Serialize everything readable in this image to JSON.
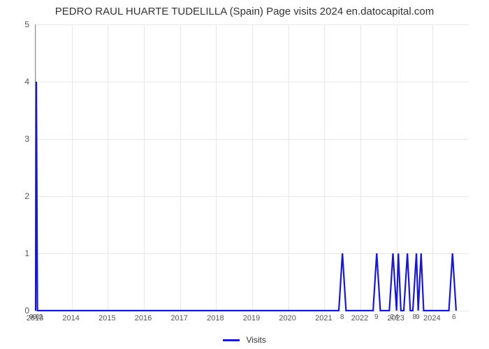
{
  "chart": {
    "type": "line",
    "title": "PEDRO RAUL HUARTE TUDELILLA (Spain) Page visits 2024 en.datocapital.com",
    "title_fontsize": 15,
    "title_color": "#333333",
    "background_color": "#ffffff",
    "grid_color": "#e8e8e8",
    "axis_color": "#888888",
    "tick_color": "#555555",
    "tick_fontsize": 12,
    "line_color": "#1919cc",
    "line_width": 2.2,
    "xlim": [
      2013,
      2025
    ],
    "ylim": [
      0,
      5
    ],
    "ytick_step": 1,
    "yticks": [
      0,
      1,
      2,
      3,
      4,
      5
    ],
    "xticks_major": [
      2013,
      2014,
      2015,
      2016,
      2017,
      2018,
      2019,
      2020,
      2021,
      2022,
      2023,
      2024
    ],
    "secondary_ticks": [
      {
        "x": 2013.02,
        "label": "9002"
      },
      {
        "x": 2021.5,
        "label": "8"
      },
      {
        "x": 2022.45,
        "label": "9"
      },
      {
        "x": 2022.95,
        "label": "2 4"
      },
      {
        "x": 2023.55,
        "label": "89"
      },
      {
        "x": 2024.6,
        "label": "6"
      }
    ],
    "series": {
      "name": "Visits",
      "points": [
        [
          2013.0,
          0.0
        ],
        [
          2013.02,
          4.0
        ],
        [
          2013.05,
          0.0
        ],
        [
          2021.4,
          0.0
        ],
        [
          2021.5,
          1.0
        ],
        [
          2021.6,
          0.0
        ],
        [
          2022.35,
          0.0
        ],
        [
          2022.45,
          1.0
        ],
        [
          2022.55,
          0.0
        ],
        [
          2022.8,
          0.0
        ],
        [
          2022.9,
          1.0
        ],
        [
          2023.0,
          0.0
        ],
        [
          2023.05,
          1.0
        ],
        [
          2023.12,
          0.0
        ],
        [
          2023.2,
          0.0
        ],
        [
          2023.3,
          1.0
        ],
        [
          2023.38,
          0.0
        ],
        [
          2023.45,
          0.0
        ],
        [
          2023.55,
          1.0
        ],
        [
          2023.6,
          0.0
        ],
        [
          2023.68,
          1.0
        ],
        [
          2023.75,
          0.0
        ],
        [
          2024.45,
          0.0
        ],
        [
          2024.55,
          1.0
        ],
        [
          2024.65,
          0.0
        ]
      ]
    },
    "legend": {
      "label": "Visits",
      "swatch_color": "#1919cc"
    }
  }
}
